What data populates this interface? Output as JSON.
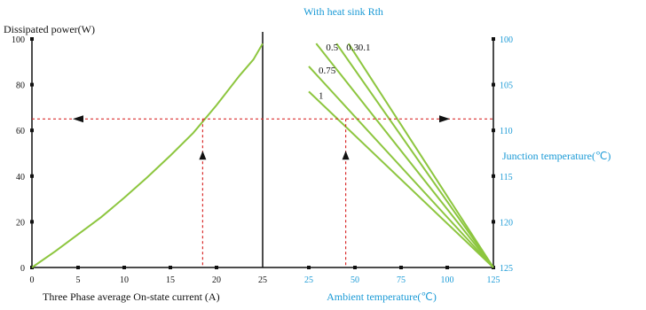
{
  "chart_data": {
    "type": "line",
    "title": "With heat sink Rth",
    "colors": {
      "axis": "#111111",
      "curve": "#8dc63f",
      "guide": "#d92b2b",
      "accent_text": "#1a9ad6"
    },
    "left_panel": {
      "ylabel": "Dissipated power(W)",
      "xlabel": "Three Phase average On-state current (A)",
      "xlim": [
        0,
        25
      ],
      "ylim": [
        0,
        100
      ],
      "x_ticks": [
        "0",
        "5",
        "10",
        "15",
        "20",
        "25"
      ],
      "y_ticks": [
        "0",
        "20",
        "40",
        "60",
        "80",
        "100"
      ],
      "series": [
        {
          "x": [
            0,
            2.5,
            5,
            7.5,
            10,
            12.5,
            15,
            17.5,
            20,
            22.5,
            24,
            25
          ],
          "y": [
            0,
            7,
            14.5,
            22,
            30.5,
            39.5,
            49,
            59,
            71,
            84,
            91,
            98
          ]
        }
      ]
    },
    "right_panel": {
      "xlabel": "Ambient temperature(℃)",
      "y2label": "Junction temperature(℃)",
      "xlim": [
        0,
        125
      ],
      "x_ticks": [
        "25",
        "50",
        "75",
        "100",
        "125"
      ],
      "y2_ticks": [
        "100",
        "105",
        "110",
        "115",
        "120",
        "125"
      ],
      "rth_series": [
        {
          "name": "0.1",
          "x": [
            46.5,
            125
          ],
          "y": [
            98,
            0
          ]
        },
        {
          "name": "0.3",
          "x": [
            40,
            125
          ],
          "y": [
            98,
            0
          ]
        },
        {
          "name": "0.5",
          "x": [
            29,
            125
          ],
          "y": [
            98,
            0
          ]
        },
        {
          "name": "0.75",
          "x": [
            25,
            125
          ],
          "y": [
            88,
            0
          ]
        },
        {
          "name": "1",
          "x": [
            25,
            125
          ],
          "y": [
            77,
            0
          ]
        }
      ]
    },
    "guide": {
      "power": 65,
      "current": 18.5,
      "ambient": 45
    }
  }
}
